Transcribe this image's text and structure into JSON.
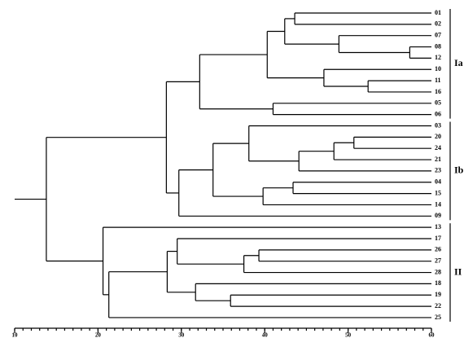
{
  "chart_data": {
    "type": "dendrogram",
    "xlim": [
      10,
      60
    ],
    "xticks": [
      10,
      20,
      30,
      40,
      50,
      60
    ],
    "minor_tick_step": 1,
    "tree": {
      "height": 13.8,
      "children": [
        {
          "height": 28.2,
          "children": [
            {
              "height": 32.2,
              "group": "Ia",
              "children": [
                {
                  "height": 40.3,
                  "children": [
                    {
                      "height": 42.4,
                      "children": [
                        {
                          "height": 43.6,
                          "children": [
                            {
                              "label": "01"
                            },
                            {
                              "label": "02"
                            }
                          ]
                        },
                        {
                          "height": 48.9,
                          "children": [
                            {
                              "label": "07"
                            },
                            {
                              "height": 57.4,
                              "children": [
                                {
                                  "label": "08"
                                },
                                {
                                  "label": "12"
                                }
                              ]
                            }
                          ]
                        }
                      ]
                    },
                    {
                      "height": 47.1,
                      "children": [
                        {
                          "label": "10"
                        },
                        {
                          "height": 52.4,
                          "children": [
                            {
                              "label": "11"
                            },
                            {
                              "label": "16"
                            }
                          ]
                        }
                      ]
                    }
                  ]
                },
                {
                  "height": 41.0,
                  "children": [
                    {
                      "label": "05"
                    },
                    {
                      "label": "06"
                    }
                  ]
                }
              ]
            },
            {
              "height": 29.7,
              "group": "Ib",
              "children": [
                {
                  "height": 33.8,
                  "children": [
                    {
                      "height": 38.1,
                      "children": [
                        {
                          "label": "03"
                        },
                        {
                          "height": 44.1,
                          "children": [
                            {
                              "height": 48.3,
                              "children": [
                                {
                                  "height": 50.7,
                                  "children": [
                                    {
                                      "label": "20"
                                    },
                                    {
                                      "label": "24"
                                    }
                                  ]
                                },
                                {
                                  "label": "21"
                                }
                              ]
                            },
                            {
                              "label": "23"
                            }
                          ]
                        }
                      ]
                    },
                    {
                      "height": 39.8,
                      "children": [
                        {
                          "height": 43.4,
                          "children": [
                            {
                              "label": "04"
                            },
                            {
                              "label": "15"
                            }
                          ]
                        },
                        {
                          "label": "14"
                        }
                      ]
                    }
                  ]
                },
                {
                  "label": "09"
                }
              ]
            }
          ]
        },
        {
          "height": 20.6,
          "group": "II",
          "children": [
            {
              "label": "13"
            },
            {
              "height": 21.3,
              "children": [
                {
                  "height": 28.3,
                  "children": [
                    {
                      "height": 29.5,
                      "children": [
                        {
                          "label": "17"
                        },
                        {
                          "height": 37.5,
                          "children": [
                            {
                              "height": 39.3,
                              "children": [
                                {
                                  "label": "26"
                                },
                                {
                                  "label": "27"
                                }
                              ]
                            },
                            {
                              "label": "28"
                            }
                          ]
                        }
                      ]
                    },
                    {
                      "height": 31.7,
                      "children": [
                        {
                          "label": "18"
                        },
                        {
                          "height": 35.9,
                          "children": [
                            {
                              "label": "19"
                            },
                            {
                              "label": "22"
                            }
                          ]
                        }
                      ]
                    }
                  ]
                },
                {
                  "label": "25"
                }
              ]
            }
          ]
        }
      ]
    }
  }
}
